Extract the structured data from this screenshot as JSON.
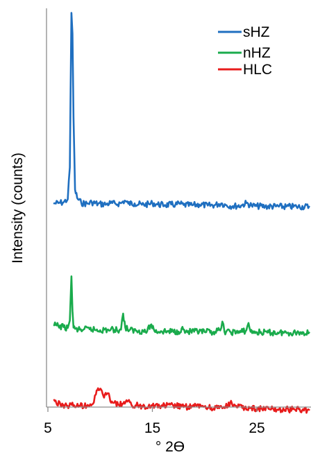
{
  "chart_data": {
    "type": "line",
    "xlabel": "° 2ϴ",
    "ylabel": "Intensity (counts)",
    "xlim": [
      5,
      30
    ],
    "x_ticks": [
      {
        "value": 5,
        "label": "5"
      },
      {
        "value": 15,
        "label": "15"
      },
      {
        "value": 25,
        "label": "25"
      }
    ],
    "y_ticks_shown": false,
    "grid": false,
    "legend_position": "top-right",
    "series": [
      {
        "name": "sHZ",
        "color": "#1f6fc0",
        "x": [
          5.6,
          6.0,
          6.5,
          6.9,
          7.1,
          7.25,
          7.35,
          7.45,
          7.6,
          7.8,
          8.2,
          8.8,
          9.2,
          9.8,
          10.6,
          11.0,
          11.5,
          12.0,
          12.35,
          12.7,
          13.3,
          14.0,
          14.7,
          15.0,
          15.5,
          16.2,
          16.8,
          17.2,
          17.6,
          18.0,
          18.8,
          19.5,
          20.3,
          21.0,
          21.6,
          22.1,
          22.7,
          23.5,
          24.0,
          24.5,
          25.0,
          25.8,
          26.8,
          27.8,
          28.8,
          30.0
        ],
        "values": [
          260,
          262,
          268,
          290,
          520,
          1640,
          1490,
          880,
          360,
          300,
          262,
          258,
          268,
          256,
          254,
          262,
          256,
          262,
          280,
          258,
          260,
          250,
          254,
          262,
          252,
          248,
          252,
          250,
          258,
          248,
          246,
          252,
          244,
          248,
          260,
          246,
          240,
          244,
          262,
          244,
          240,
          238,
          238,
          236,
          236,
          236
        ]
      },
      {
        "name": "nHZ",
        "color": "#1aab4c",
        "x": [
          5.6,
          6.0,
          6.5,
          6.9,
          7.1,
          7.25,
          7.35,
          7.45,
          7.6,
          7.9,
          8.4,
          9.0,
          10.0,
          11.0,
          12.0,
          12.2,
          12.4,
          12.8,
          13.5,
          14.5,
          14.9,
          15.2,
          15.8,
          16.5,
          17.5,
          17.8,
          18.2,
          19.0,
          20.0,
          21.0,
          21.5,
          21.7,
          21.9,
          22.5,
          23.5,
          24.0,
          24.2,
          24.4,
          25.0,
          26.0,
          27.0,
          28.0,
          29.0,
          30.0
        ],
        "values": [
          95,
          90,
          82,
          76,
          130,
          450,
          200,
          78,
          70,
          62,
          64,
          66,
          60,
          62,
          64,
          180,
          80,
          60,
          56,
          52,
          102,
          54,
          52,
          50,
          50,
          72,
          48,
          48,
          46,
          48,
          58,
          122,
          50,
          46,
          46,
          60,
          112,
          48,
          44,
          42,
          42,
          42,
          42,
          42
        ]
      },
      {
        "name": "HLC",
        "color": "#e81c1c",
        "x": [
          5.6,
          5.8,
          6.2,
          6.8,
          7.5,
          8.0,
          8.8,
          9.4,
          9.6,
          9.8,
          10.1,
          10.3,
          10.6,
          10.9,
          11.2,
          11.8,
          12.2,
          12.6,
          13.0,
          14.0,
          15.0,
          16.0,
          17.0,
          18.0,
          19.0,
          19.8,
          20.4,
          21.4,
          22.0,
          22.6,
          23.0,
          23.6,
          24.4,
          25.5,
          26.6,
          27.6,
          28.6,
          30.0
        ],
        "values": [
          -300,
          -320,
          -334,
          -340,
          -338,
          -342,
          -336,
          -318,
          -260,
          -215,
          -225,
          -270,
          -262,
          -278,
          -320,
          -336,
          -328,
          -312,
          -336,
          -344,
          -340,
          -344,
          -340,
          -352,
          -348,
          -342,
          -356,
          -360,
          -354,
          -322,
          -342,
          -358,
          -358,
          -366,
          -368,
          -370,
          -368,
          -372
        ]
      }
    ]
  }
}
